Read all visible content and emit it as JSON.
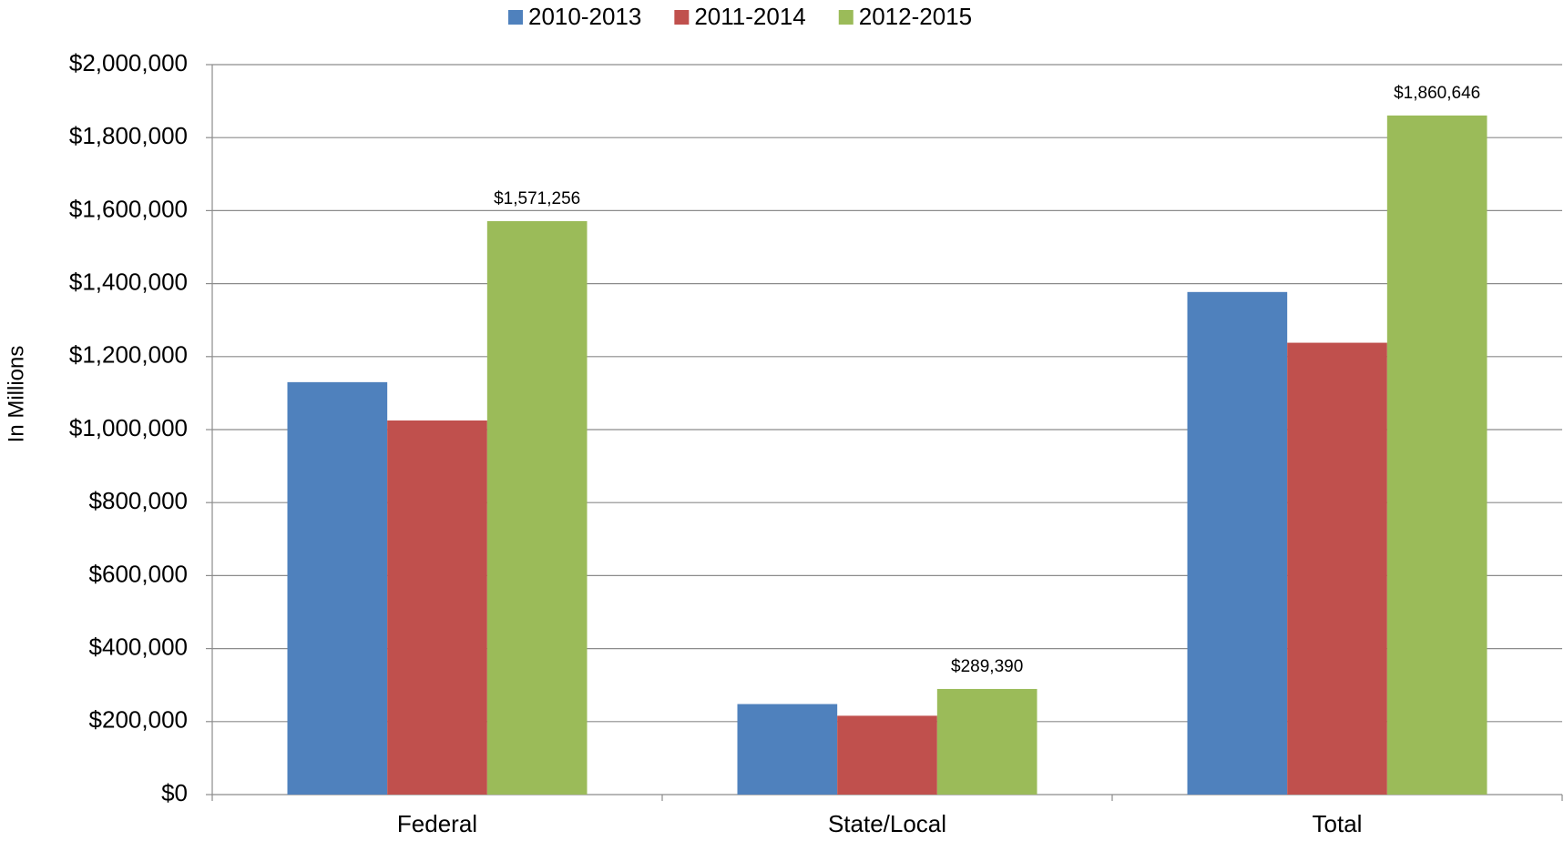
{
  "chart_data": {
    "type": "bar",
    "y_axis_label": "In Millions",
    "categories": [
      "Federal",
      "State/Local",
      "Total"
    ],
    "series": [
      {
        "name": "2010-2013",
        "color": "#4f81bd",
        "values": [
          1130000,
          248000,
          1377000
        ]
      },
      {
        "name": "2011-2014",
        "color": "#c0504d",
        "values": [
          1025000,
          216000,
          1238000
        ]
      },
      {
        "name": "2012-2015",
        "color": "#9bbb59",
        "values": [
          1571256,
          289390,
          1860646
        ],
        "value_labels": [
          "$1,571,256",
          "$289,390",
          "$1,860,646"
        ]
      }
    ],
    "ylim": [
      0,
      2000000
    ],
    "yticks": [
      {
        "value": 0,
        "label": "$0"
      },
      {
        "value": 200000,
        "label": "$200,000"
      },
      {
        "value": 400000,
        "label": "$400,000"
      },
      {
        "value": 600000,
        "label": "$600,000"
      },
      {
        "value": 800000,
        "label": "$800,000"
      },
      {
        "value": 1000000,
        "label": "$1,000,000"
      },
      {
        "value": 1200000,
        "label": "$1,200,000"
      },
      {
        "value": 1400000,
        "label": "$1,400,000"
      },
      {
        "value": 1600000,
        "label": "$1,600,000"
      },
      {
        "value": 1800000,
        "label": "$1,800,000"
      },
      {
        "value": 2000000,
        "label": "$2,000,000"
      }
    ],
    "grid": true,
    "legend": "top"
  }
}
